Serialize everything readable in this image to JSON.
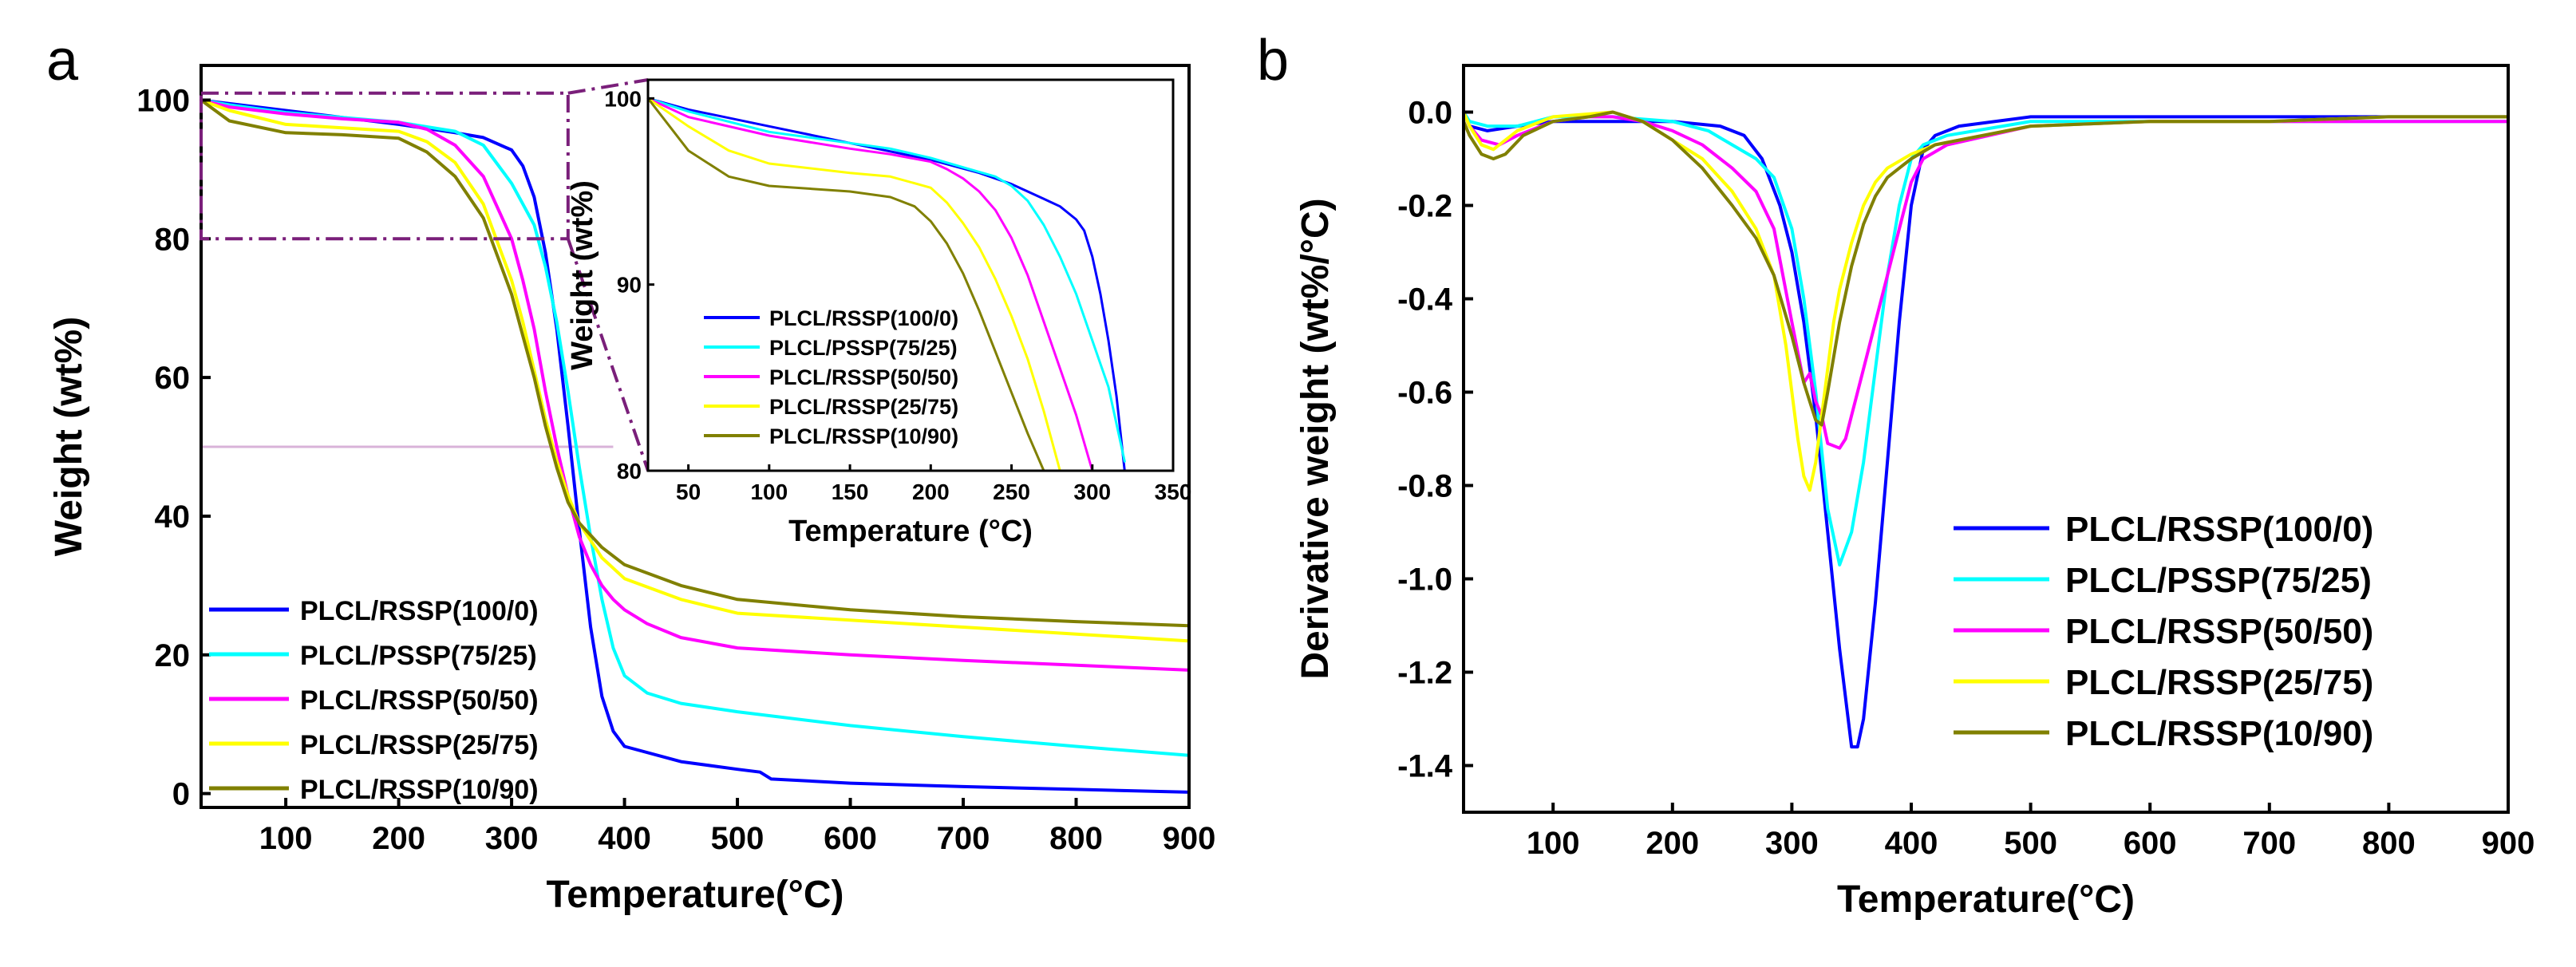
{
  "figure": {
    "panel_a_label": "a",
    "panel_b_label": "b"
  },
  "chart_data": [
    {
      "id": "main_tga",
      "type": "line",
      "xlabel": "Temperature(°C)",
      "ylabel": "Weight (wt%)",
      "xlim": [
        25,
        900
      ],
      "ylim": [
        -2,
        105
      ],
      "xticks": [
        100,
        200,
        300,
        400,
        500,
        600,
        700,
        800,
        900
      ],
      "yticks": [
        0,
        20,
        40,
        60,
        80,
        100
      ],
      "reference_line_y": 50,
      "reference_line_x_range": [
        25,
        390
      ],
      "zoom_box": {
        "x": [
          25,
          350
        ],
        "y": [
          80,
          101
        ]
      },
      "legend_position": "bottom-left",
      "series": [
        {
          "name": "PLCL/RSSP(100/0)",
          "color": "#0000FF",
          "x": [
            25,
            50,
            100,
            150,
            200,
            250,
            275,
            300,
            310,
            320,
            330,
            340,
            350,
            360,
            370,
            380,
            390,
            400,
            450,
            500,
            520,
            530,
            600,
            700,
            800,
            900
          ],
          "y": [
            100,
            99.5,
            98.5,
            97.5,
            96.5,
            95.3,
            94.6,
            92.8,
            90.5,
            86,
            78,
            67,
            53,
            38,
            24,
            14,
            9,
            6.8,
            4.6,
            3.5,
            3.1,
            2.1,
            1.5,
            1.0,
            0.6,
            0.2
          ]
        },
        {
          "name": "PLCL/PSSP(75/25)",
          "color": "#00FFFF",
          "x": [
            25,
            50,
            100,
            150,
            200,
            250,
            275,
            300,
            320,
            330,
            340,
            350,
            360,
            370,
            380,
            390,
            400,
            420,
            450,
            500,
            600,
            700,
            800,
            900
          ],
          "y": [
            100,
            99.3,
            98.2,
            97.5,
            96.8,
            95.5,
            93.5,
            88,
            82,
            76,
            68,
            58,
            47,
            37,
            28,
            21,
            17,
            14.5,
            13,
            11.8,
            9.8,
            8.2,
            6.8,
            5.5
          ]
        },
        {
          "name": "PLCL/RSSP(50/50)",
          "color": "#FF00FF",
          "x": [
            25,
            50,
            100,
            150,
            200,
            225,
            250,
            275,
            300,
            310,
            320,
            330,
            340,
            350,
            360,
            370,
            380,
            390,
            400,
            420,
            450,
            500,
            600,
            700,
            800,
            900
          ],
          "y": [
            100,
            99,
            98,
            97.3,
            96.8,
            95.8,
            93.5,
            89,
            80,
            74,
            67,
            58,
            50,
            43,
            37,
            33,
            30,
            28,
            26.5,
            24.5,
            22.5,
            21,
            20,
            19.2,
            18.5,
            17.8
          ]
        },
        {
          "name": "PLCL/RSSP(25/75)",
          "color": "#FFFF00",
          "x": [
            25,
            50,
            100,
            150,
            200,
            225,
            250,
            275,
            300,
            310,
            320,
            330,
            340,
            350,
            360,
            380,
            400,
            450,
            500,
            600,
            700,
            800,
            900
          ],
          "y": [
            100,
            98.5,
            96.5,
            96,
            95.5,
            94,
            91,
            85,
            74,
            68,
            61,
            54,
            48,
            43,
            39,
            34,
            31,
            28,
            26,
            25,
            24,
            23,
            22
          ]
        },
        {
          "name": "PLCL/RSSP(10/90)",
          "color": "#808000",
          "x": [
            25,
            50,
            100,
            150,
            200,
            225,
            250,
            275,
            300,
            310,
            320,
            330,
            340,
            350,
            360,
            380,
            400,
            450,
            500,
            600,
            700,
            800,
            900
          ],
          "y": [
            100,
            97,
            95.3,
            95,
            94.5,
            92.5,
            89,
            83,
            72,
            66,
            60,
            53,
            47,
            42,
            39,
            35.5,
            33,
            30,
            28,
            26.5,
            25.5,
            24.8,
            24.2
          ]
        }
      ]
    },
    {
      "id": "inset_tga",
      "type": "line",
      "xlabel": "Temperature (°C)",
      "ylabel": "Weight (wt%)",
      "xlim": [
        25,
        350
      ],
      "ylim": [
        80,
        101
      ],
      "xticks": [
        50,
        100,
        150,
        200,
        250,
        300,
        350
      ],
      "yticks": [
        80,
        90,
        100
      ],
      "legend_position": "bottom-left",
      "series": [
        {
          "name": "PLCL/RSSP(100/0)",
          "color": "#0000FF",
          "x": [
            25,
            50,
            100,
            150,
            200,
            230,
            250,
            260,
            270,
            280,
            290,
            295,
            300,
            305,
            310,
            315,
            320
          ],
          "y": [
            100,
            99.4,
            98.5,
            97.6,
            96.7,
            96,
            95.4,
            95,
            94.6,
            94.2,
            93.5,
            92.9,
            91.5,
            89.5,
            87,
            84,
            80
          ]
        },
        {
          "name": "PLCL/PSSP(75/25)",
          "color": "#00FFFF",
          "x": [
            25,
            50,
            100,
            150,
            175,
            200,
            220,
            240,
            250,
            260,
            270,
            280,
            290,
            300,
            310,
            320
          ],
          "y": [
            100,
            99.3,
            98.2,
            97.6,
            97.3,
            96.8,
            96.3,
            95.8,
            95.3,
            94.5,
            93.2,
            91.5,
            89.5,
            87,
            84.5,
            80.5
          ]
        },
        {
          "name": "PLCL/RSSP(50/50)",
          "color": "#FF00FF",
          "x": [
            25,
            50,
            100,
            150,
            175,
            200,
            210,
            220,
            230,
            240,
            250,
            260,
            270,
            280,
            290,
            300
          ],
          "y": [
            100,
            99,
            98,
            97.3,
            97,
            96.6,
            96.2,
            95.7,
            95,
            94,
            92.5,
            90.5,
            88,
            85.5,
            83,
            80
          ]
        },
        {
          "name": "PLCL/RSSP(25/75)",
          "color": "#FFFF00",
          "x": [
            25,
            50,
            75,
            100,
            150,
            175,
            200,
            210,
            220,
            230,
            240,
            250,
            260,
            270,
            280
          ],
          "y": [
            100,
            98.5,
            97.2,
            96.5,
            96,
            95.8,
            95.2,
            94.4,
            93.3,
            92,
            90.3,
            88.3,
            86,
            83.2,
            80
          ]
        },
        {
          "name": "PLCL/RSSP(10/90)",
          "color": "#808000",
          "x": [
            25,
            50,
            75,
            100,
            150,
            175,
            190,
            200,
            210,
            220,
            230,
            240,
            250,
            260,
            270
          ],
          "y": [
            100,
            97.2,
            95.8,
            95.3,
            95,
            94.7,
            94.2,
            93.4,
            92.2,
            90.6,
            88.6,
            86.4,
            84.2,
            82,
            80
          ]
        }
      ]
    },
    {
      "id": "dtg",
      "type": "line",
      "xlabel": "Temperature(°C)",
      "ylabel": "Derivative weight (wt%/°C)",
      "xlim": [
        25,
        900
      ],
      "ylim": [
        -1.5,
        0.1
      ],
      "xticks": [
        100,
        200,
        300,
        400,
        500,
        600,
        700,
        800,
        900
      ],
      "yticks": [
        0.0,
        -0.2,
        -0.4,
        -0.6,
        -0.8,
        -1.0,
        -1.2,
        -1.4
      ],
      "ytick_labels": [
        "0.0",
        "-0.2",
        "-0.4",
        "-0.6",
        "-0.8",
        "-1.0",
        "-1.2",
        "-1.4"
      ],
      "legend_position": "bottom-right",
      "series": [
        {
          "name": "PLCL/RSSP(100/0)",
          "color": "#0000FF",
          "x": [
            25,
            30,
            45,
            70,
            100,
            150,
            200,
            240,
            260,
            275,
            290,
            300,
            310,
            320,
            330,
            340,
            350,
            355,
            360,
            370,
            380,
            390,
            400,
            410,
            420,
            440,
            500,
            600,
            700,
            800,
            900
          ],
          "y": [
            0,
            -0.03,
            -0.04,
            -0.03,
            -0.02,
            -0.02,
            -0.02,
            -0.03,
            -0.05,
            -0.1,
            -0.2,
            -0.3,
            -0.45,
            -0.65,
            -0.9,
            -1.15,
            -1.36,
            -1.36,
            -1.3,
            -1.05,
            -0.75,
            -0.45,
            -0.2,
            -0.08,
            -0.05,
            -0.03,
            -0.01,
            -0.01,
            -0.01,
            -0.01,
            -0.01
          ]
        },
        {
          "name": "PLCL/PSSP(75/25)",
          "color": "#00FFFF",
          "x": [
            25,
            30,
            45,
            70,
            100,
            150,
            200,
            230,
            250,
            270,
            285,
            300,
            310,
            320,
            330,
            340,
            350,
            360,
            370,
            380,
            390,
            400,
            410,
            430,
            500,
            600,
            700,
            800,
            900
          ],
          "y": [
            0,
            -0.02,
            -0.03,
            -0.03,
            -0.01,
            -0.01,
            -0.02,
            -0.04,
            -0.07,
            -0.1,
            -0.14,
            -0.25,
            -0.4,
            -0.6,
            -0.85,
            -0.97,
            -0.9,
            -0.75,
            -0.55,
            -0.35,
            -0.2,
            -0.1,
            -0.07,
            -0.05,
            -0.02,
            -0.02,
            -0.02,
            -0.02,
            -0.02
          ]
        },
        {
          "name": "PLCL/RSSP(50/50)",
          "color": "#FF00FF",
          "x": [
            25,
            30,
            40,
            55,
            70,
            100,
            130,
            150,
            175,
            200,
            225,
            250,
            270,
            285,
            300,
            310,
            315,
            320,
            325,
            330,
            340,
            345,
            350,
            360,
            370,
            380,
            390,
            400,
            410,
            430,
            500,
            600,
            700,
            800,
            900
          ],
          "y": [
            0,
            -0.03,
            -0.06,
            -0.07,
            -0.05,
            -0.02,
            -0.01,
            -0.01,
            -0.02,
            -0.04,
            -0.07,
            -0.12,
            -0.17,
            -0.25,
            -0.45,
            -0.58,
            -0.56,
            -0.62,
            -0.65,
            -0.71,
            -0.72,
            -0.7,
            -0.65,
            -0.55,
            -0.45,
            -0.35,
            -0.25,
            -0.15,
            -0.1,
            -0.07,
            -0.03,
            -0.02,
            -0.02,
            -0.02,
            -0.02
          ]
        },
        {
          "name": "PLCL/RSSP(25/75)",
          "color": "#FFFF00",
          "x": [
            25,
            30,
            40,
            50,
            70,
            100,
            150,
            175,
            200,
            225,
            250,
            270,
            285,
            295,
            305,
            310,
            315,
            320,
            325,
            330,
            335,
            340,
            350,
            360,
            370,
            380,
            400,
            420,
            500,
            600,
            700,
            800,
            900
          ],
          "y": [
            0,
            -0.03,
            -0.07,
            -0.08,
            -0.04,
            -0.01,
            0,
            -0.02,
            -0.06,
            -0.1,
            -0.17,
            -0.25,
            -0.35,
            -0.5,
            -0.7,
            -0.78,
            -0.81,
            -0.75,
            -0.65,
            -0.55,
            -0.45,
            -0.38,
            -0.28,
            -0.2,
            -0.15,
            -0.12,
            -0.09,
            -0.07,
            -0.03,
            -0.02,
            -0.02,
            -0.01,
            -0.01
          ]
        },
        {
          "name": "PLCL/RSSP(10/90)",
          "color": "#808000",
          "x": [
            25,
            30,
            40,
            50,
            60,
            75,
            100,
            130,
            150,
            175,
            200,
            225,
            250,
            270,
            285,
            300,
            310,
            315,
            320,
            325,
            330,
            340,
            350,
            360,
            370,
            380,
            390,
            400,
            420,
            500,
            600,
            700,
            800,
            900
          ],
          "y": [
            -0.02,
            -0.05,
            -0.09,
            -0.1,
            -0.09,
            -0.05,
            -0.02,
            -0.01,
            0,
            -0.02,
            -0.06,
            -0.12,
            -0.2,
            -0.27,
            -0.35,
            -0.48,
            -0.58,
            -0.62,
            -0.66,
            -0.67,
            -0.6,
            -0.45,
            -0.33,
            -0.24,
            -0.18,
            -0.14,
            -0.12,
            -0.1,
            -0.07,
            -0.03,
            -0.02,
            -0.02,
            -0.01,
            -0.01
          ]
        }
      ]
    }
  ]
}
